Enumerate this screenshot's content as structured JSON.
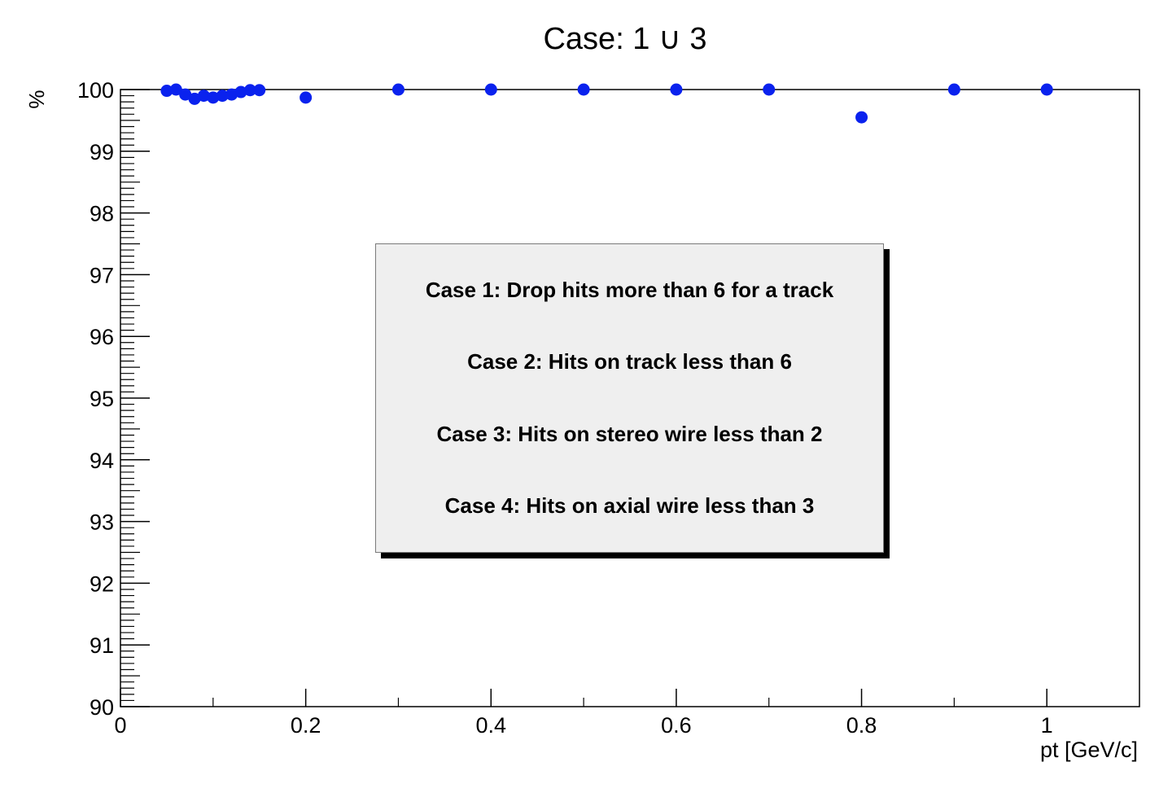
{
  "chart_data": {
    "type": "scatter",
    "title": "Case: 1 ∪ 3",
    "xlabel": "pt [GeV/c]",
    "ylabel": "%",
    "xlim": [
      0,
      1.1
    ],
    "ylim": [
      90,
      100
    ],
    "x_ticks": [
      0,
      0.2,
      0.4,
      0.6,
      0.8,
      1
    ],
    "x_tick_labels": [
      "0",
      "0.2",
      "0.4",
      "0.6",
      "0.8",
      "1"
    ],
    "y_ticks": [
      90,
      91,
      92,
      93,
      94,
      95,
      96,
      97,
      98,
      99,
      100
    ],
    "y_tick_labels": [
      "90",
      "91",
      "92",
      "93",
      "94",
      "95",
      "96",
      "97",
      "98",
      "99",
      "100"
    ],
    "grid": false,
    "marker_color": "#0a22ee",
    "x": [
      0.05,
      0.06,
      0.07,
      0.08,
      0.09,
      0.1,
      0.11,
      0.12,
      0.13,
      0.14,
      0.15,
      0.2,
      0.3,
      0.4,
      0.5,
      0.6,
      0.7,
      0.8,
      0.9,
      1.0
    ],
    "y": [
      99.98,
      100.0,
      99.92,
      99.85,
      99.9,
      99.87,
      99.9,
      99.92,
      99.96,
      99.99,
      99.99,
      99.87,
      100.0,
      100.0,
      100.0,
      100.0,
      100.0,
      99.55,
      100.0,
      100.0
    ],
    "legend_box": {
      "placement": "center",
      "lines": [
        "Case 1: Drop hits more than 6 for a track",
        "Case 2: Hits on track less than 6",
        "Case 3: Hits on stereo wire less than 2",
        "Case 4: Hits on axial wire less than 3"
      ]
    }
  }
}
